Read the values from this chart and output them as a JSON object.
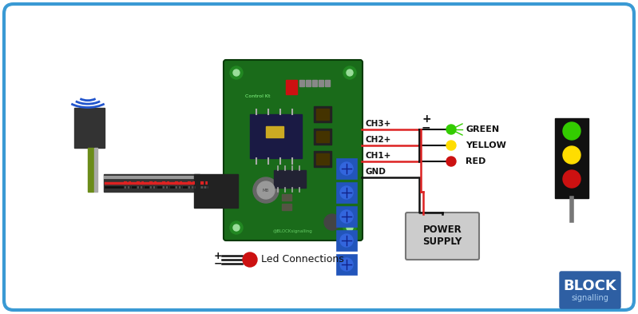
{
  "bg_color": "#ffffff",
  "border_color": "#3a9ad4",
  "border_lw": 3,
  "block_blue": "#2e5fa3",
  "green_color": "#33cc00",
  "yellow_color": "#ffdd00",
  "red_color": "#cc1111",
  "pcb_green": "#1a6b1a",
  "black": "#111111",
  "dark_gray": "#333333",
  "light_gray": "#cccccc",
  "wire_red": "#dd2222",
  "wire_black": "#111111",
  "wire_gray": "#999999",
  "blue_arc": "#2255cc",
  "blue_terminal": "#2255bb",
  "olive": "#6b6b00",
  "ch3_label": "CH3+",
  "ch2_label": "CH2+",
  "ch1_label": "CH1+",
  "gnd_label": "GND",
  "green_label": "GREEN",
  "yellow_label": "YELLOW",
  "red_label": "RED",
  "power_label": "POWER\nSUPPLY",
  "led_label": "Led Connections",
  "block_label": "BLOCK",
  "signalling_label": "signalling"
}
